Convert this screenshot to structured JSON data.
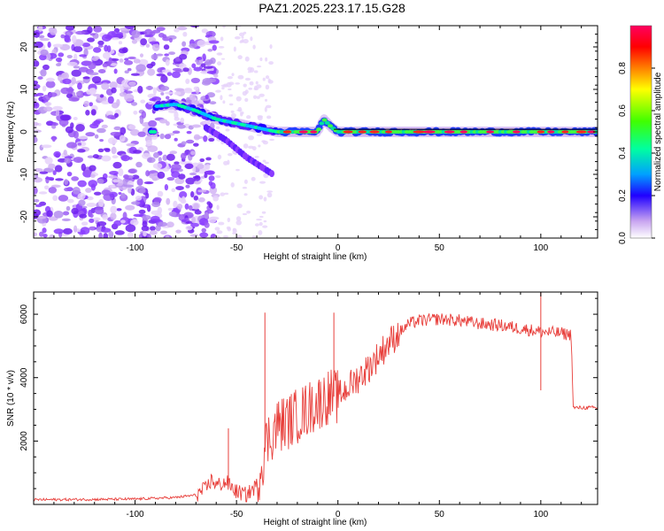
{
  "title": "PAZ1.2025.223.17.15.G28",
  "colors": {
    "snr_line": "#e8403c",
    "center_line": "#000000",
    "colormap": [
      "#ffffff",
      "#c8a4f0",
      "#8c3cff",
      "#2000ff",
      "#00a0ff",
      "#00ffa0",
      "#40ff00",
      "#ffff00",
      "#ff8000",
      "#ff0000",
      "#ff0060"
    ]
  },
  "chart_data": [
    {
      "type": "heatmap",
      "xlabel": "Height of straight line (km)",
      "ylabel": "Frequency (Hz)",
      "xlim": [
        -150,
        128
      ],
      "ylim": [
        -25,
        25
      ],
      "xticks": [
        "-100",
        "-50",
        "0",
        "50",
        "100"
      ],
      "yticks": [
        "-20",
        "-10",
        "0",
        "10",
        "20"
      ],
      "ridge": [
        {
          "x": -90,
          "y": 6
        },
        {
          "x": -80,
          "y": 6.5
        },
        {
          "x": -70,
          "y": 5
        },
        {
          "x": -60,
          "y": 3
        },
        {
          "x": -50,
          "y": 2
        },
        {
          "x": -40,
          "y": 1
        },
        {
          "x": -30,
          "y": 0
        },
        {
          "x": -10,
          "y": 0
        },
        {
          "x": -7,
          "y": 3
        },
        {
          "x": -3,
          "y": 1
        },
        {
          "x": 0,
          "y": 0
        },
        {
          "x": 128,
          "y": 0
        }
      ],
      "branch": [
        {
          "x": -65,
          "y": 1
        },
        {
          "x": -55,
          "y": -2
        },
        {
          "x": -45,
          "y": -6
        },
        {
          "x": -32,
          "y": -10
        }
      ]
    },
    {
      "type": "line",
      "xlabel": "Height of straight line (km)",
      "ylabel": "SNR (10 * v/v)",
      "xlim": [
        -150,
        128
      ],
      "ylim": [
        0,
        6700
      ],
      "xticks": [
        "-100",
        "-50",
        "0",
        "50",
        "100"
      ],
      "yticks": [
        "2000",
        "4000",
        "6000"
      ],
      "series": [
        {
          "values": [
            {
              "x": -150,
              "y": 150
            },
            {
              "x": -120,
              "y": 160
            },
            {
              "x": -100,
              "y": 170
            },
            {
              "x": -80,
              "y": 220
            },
            {
              "x": -70,
              "y": 300
            },
            {
              "x": -65,
              "y": 500
            },
            {
              "x": -62,
              "y": 800
            },
            {
              "x": -60,
              "y": 600
            },
            {
              "x": -55,
              "y": 700
            },
            {
              "x": -50,
              "y": 400
            },
            {
              "x": -45,
              "y": 300
            },
            {
              "x": -40,
              "y": 600
            },
            {
              "x": -38,
              "y": 1200
            },
            {
              "x": -35,
              "y": 2000
            },
            {
              "x": -30,
              "y": 2500
            },
            {
              "x": -25,
              "y": 2600
            },
            {
              "x": -20,
              "y": 2800
            },
            {
              "x": -15,
              "y": 3000
            },
            {
              "x": -10,
              "y": 3200
            },
            {
              "x": -5,
              "y": 3400
            },
            {
              "x": 0,
              "y": 3400
            },
            {
              "x": 5,
              "y": 3700
            },
            {
              "x": 10,
              "y": 4000
            },
            {
              "x": 15,
              "y": 4300
            },
            {
              "x": 20,
              "y": 4700
            },
            {
              "x": 25,
              "y": 5100
            },
            {
              "x": 30,
              "y": 5400
            },
            {
              "x": 35,
              "y": 5700
            },
            {
              "x": 40,
              "y": 5800
            },
            {
              "x": 50,
              "y": 5850
            },
            {
              "x": 60,
              "y": 5800
            },
            {
              "x": 70,
              "y": 5700
            },
            {
              "x": 80,
              "y": 5650
            },
            {
              "x": 90,
              "y": 5550
            },
            {
              "x": 100,
              "y": 5450
            },
            {
              "x": 110,
              "y": 5400
            },
            {
              "x": 115,
              "y": 5350
            },
            {
              "x": 116,
              "y": 3050
            },
            {
              "x": 128,
              "y": 3050
            }
          ]
        }
      ],
      "spikes": [
        {
          "x": -54,
          "y": 2400
        },
        {
          "x": -36,
          "y": 6050
        },
        {
          "x": -2,
          "y": 6050
        },
        {
          "x": 100,
          "y": 6700
        },
        {
          "x": 100,
          "y": 3600
        }
      ]
    }
  ],
  "colorbar": {
    "label": "Normalized spectral amplitude",
    "ticks": [
      "0.0",
      "0.2",
      "0.4",
      "0.6",
      "0.8"
    ]
  }
}
